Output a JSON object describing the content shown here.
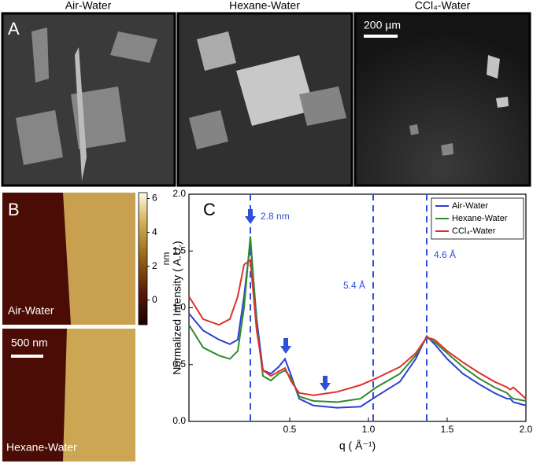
{
  "panel_a": {
    "letter": "A",
    "titles": [
      "Air-Water",
      "Hexane-Water",
      "CCl₄-Water"
    ],
    "scale_bar": "200 µm"
  },
  "panel_b": {
    "letter": "B",
    "labels": [
      "Air-Water",
      "Hexane-Water"
    ],
    "scale_bar": "500 nm",
    "colorbar": {
      "label": "nm",
      "lim": [
        -1.45,
        6.35
      ],
      "ticks": [
        6,
        4,
        2,
        0
      ]
    }
  },
  "chart_data": {
    "type": "line",
    "letter": "C",
    "xlabel": "q ( Å⁻¹)",
    "ylabel": "Normalized Intensity ( A.U.)",
    "xlim": [
      -0.14,
      2.0
    ],
    "ylim": [
      0,
      2.0
    ],
    "xticks": [
      {
        "value": 0.5,
        "label": "0.5"
      },
      {
        "value": 1.0,
        "label": "1.0"
      },
      {
        "value": 1.5,
        "label": "1.5"
      },
      {
        "value": 2.0,
        "label": "2.0"
      }
    ],
    "yticks": [
      {
        "value": 0,
        "label": "0.0"
      },
      {
        "value": 0.5,
        "label": "0.5"
      },
      {
        "value": 1.0,
        "label": "1.0"
      },
      {
        "value": 1.5,
        "label": "1.5"
      },
      {
        "value": 2.0,
        "label": "2.0"
      }
    ],
    "vlines": [
      0.25,
      1.03,
      1.37
    ],
    "vline_color": "#2f4fd8",
    "annotations": [
      "2.8 nm",
      "5.4 Å",
      "4.6 Å"
    ],
    "legend": "upper right",
    "x": [
      -0.14,
      -0.05,
      0.05,
      0.12,
      0.17,
      0.21,
      0.25,
      0.29,
      0.33,
      0.38,
      0.43,
      0.47,
      0.51,
      0.56,
      0.65,
      0.8,
      0.95,
      1.05,
      1.2,
      1.3,
      1.37,
      1.42,
      1.5,
      1.6,
      1.7,
      1.8,
      1.88,
      1.9,
      1.92,
      2.0
    ],
    "series": [
      {
        "name": "Air-Water",
        "color": "#2a3fd6",
        "values": [
          0.95,
          0.8,
          0.72,
          0.68,
          0.72,
          1.1,
          1.58,
          0.9,
          0.45,
          0.42,
          0.48,
          0.55,
          0.4,
          0.2,
          0.14,
          0.12,
          0.13,
          0.22,
          0.35,
          0.55,
          0.75,
          0.68,
          0.55,
          0.42,
          0.33,
          0.25,
          0.2,
          0.2,
          0.17,
          0.14
        ]
      },
      {
        "name": "Hexane-Water",
        "color": "#2f8a2f",
        "values": [
          0.85,
          0.65,
          0.58,
          0.55,
          0.62,
          1.0,
          1.63,
          0.85,
          0.4,
          0.36,
          0.42,
          0.45,
          0.38,
          0.22,
          0.18,
          0.17,
          0.2,
          0.3,
          0.42,
          0.58,
          0.74,
          0.7,
          0.6,
          0.48,
          0.38,
          0.3,
          0.25,
          0.22,
          0.2,
          0.18
        ]
      },
      {
        "name": "CCl₄-Water",
        "color": "#e0302a",
        "values": [
          1.1,
          0.9,
          0.85,
          0.9,
          1.1,
          1.38,
          1.42,
          0.8,
          0.45,
          0.4,
          0.44,
          0.47,
          0.35,
          0.25,
          0.23,
          0.26,
          0.32,
          0.38,
          0.48,
          0.6,
          0.74,
          0.72,
          0.62,
          0.52,
          0.43,
          0.35,
          0.3,
          0.28,
          0.3,
          0.2
        ]
      }
    ]
  }
}
